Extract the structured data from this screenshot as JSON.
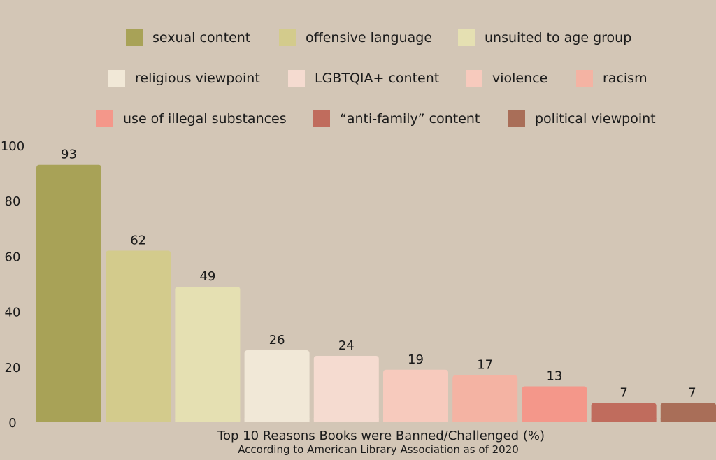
{
  "chart_data": {
    "type": "bar",
    "categories": [
      "sexual content",
      "offensive language",
      "unsuited to age group",
      "religious viewpoint",
      "LGBTQIA+ content",
      "violence",
      "racism",
      "use of illegal substances",
      "“anti-family” content",
      "political viewpoint"
    ],
    "values": [
      93,
      62,
      49,
      26,
      24,
      19,
      17,
      13,
      7,
      7
    ],
    "colors": [
      "#a8a257",
      "#d3cb8c",
      "#e5e0b2",
      "#f1e8d7",
      "#f5dbd0",
      "#f7cabd",
      "#f4b3a3",
      "#f4978a",
      "#c06c5d",
      "#a96e58"
    ],
    "ylim": [
      0,
      100
    ],
    "yticks": [
      "0",
      "20",
      "40",
      "60",
      "80",
      "100"
    ],
    "title": "Top 10 Reasons Books were Banned/Challenged (%)",
    "subtitle": "According to American Library Association as of 2020",
    "legend_position": "top",
    "grid": false
  }
}
